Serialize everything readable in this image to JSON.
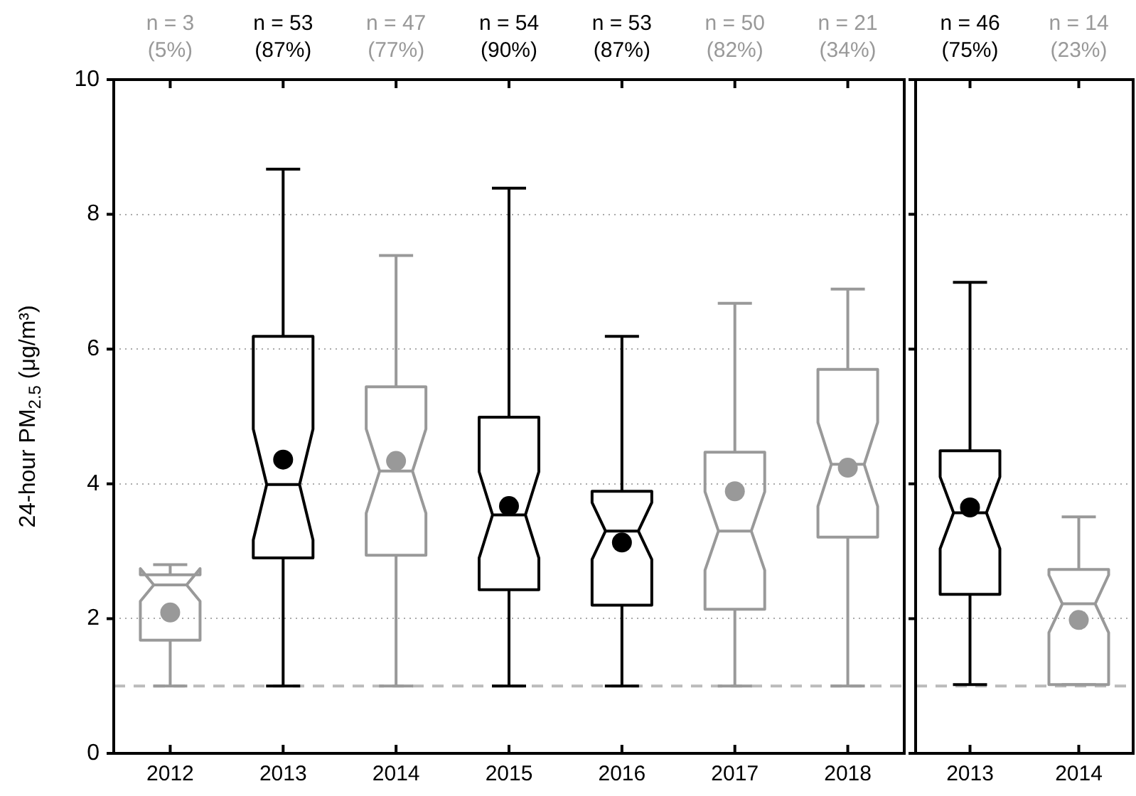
{
  "chart_data": [
    {
      "type": "box",
      "ylabel": "24-hour PM$_{2.5}$ (μg/m³)",
      "categories": [
        "2012",
        "2013",
        "2014",
        "2015",
        "2016",
        "2017",
        "2018"
      ],
      "boxes": [
        {
          "low": 1,
          "q1": 1.68,
          "median": 2.5,
          "q3": 2.65,
          "high": 2.8,
          "mean": 2.09
        },
        {
          "low": 1,
          "q1": 2.9,
          "median": 3.99,
          "q3": 6.19,
          "high": 8.67,
          "mean": 4.36
        },
        {
          "low": 1,
          "q1": 2.94,
          "median": 4.19,
          "q3": 5.44,
          "high": 7.39,
          "mean": 4.34
        },
        {
          "low": 1,
          "q1": 2.43,
          "median": 3.54,
          "q3": 4.99,
          "high": 8.39,
          "mean": 3.67
        },
        {
          "low": 1,
          "q1": 2.2,
          "median": 3.3,
          "q3": 3.89,
          "high": 6.19,
          "mean": 3.13
        },
        {
          "low": 1,
          "q1": 2.14,
          "median": 3.3,
          "q3": 4.47,
          "high": 6.68,
          "mean": 3.89
        },
        {
          "low": 1,
          "q1": 3.21,
          "median": 4.29,
          "q3": 5.7,
          "high": 6.89,
          "mean": 4.24
        }
      ],
      "colors": [
        "#999999",
        "#000000",
        "#999999",
        "#000000",
        "#000000",
        "#999999",
        "#999999"
      ],
      "ylim": [
        0,
        10
      ],
      "yticks": [
        0,
        2,
        4,
        6,
        8,
        10
      ],
      "grid": "y",
      "ref_lines": [
        {
          "axis": "y",
          "value": 1,
          "color": "#bbbbbb",
          "line_style": "dashed"
        }
      ],
      "annotations": [
        {
          "text": "n = 3\n(5%)",
          "x": "2012"
        },
        {
          "text": "n = 53\n(87%)",
          "x": "2013"
        },
        {
          "text": "n = 47\n(77%)",
          "x": "2014"
        },
        {
          "text": "n = 54\n(90%)",
          "x": "2015"
        },
        {
          "text": "n = 53\n(87%)",
          "x": "2016"
        },
        {
          "text": "n = 50\n(82%)",
          "x": "2017"
        },
        {
          "text": "n = 21\n(34%)",
          "x": "2018"
        }
      ]
    },
    {
      "type": "box",
      "categories": [
        "2013",
        "2014"
      ],
      "boxes": [
        {
          "low": 1.02,
          "q1": 2.36,
          "median": 3.57,
          "q3": 4.49,
          "high": 6.99,
          "mean": 3.65
        },
        {
          "low": 1.02,
          "q1": 1.02,
          "median": 2.22,
          "q3": 2.73,
          "high": 3.51,
          "mean": 1.98
        }
      ],
      "colors": [
        "#000000",
        "#999999"
      ],
      "ylim": [
        0,
        10
      ],
      "yticks": [
        0,
        2,
        4,
        6,
        8,
        10
      ],
      "grid": "y",
      "tick_labels": "x",
      "ref_lines": [
        {
          "axis": "y",
          "value": 1,
          "color": "#bbbbbb",
          "line_style": "dashed"
        }
      ],
      "annotations": [
        {
          "text": "n = 46\n(75%)",
          "x": "2013"
        },
        {
          "text": "n = 14\n(23%)",
          "x": "2014"
        }
      ]
    }
  ]
}
